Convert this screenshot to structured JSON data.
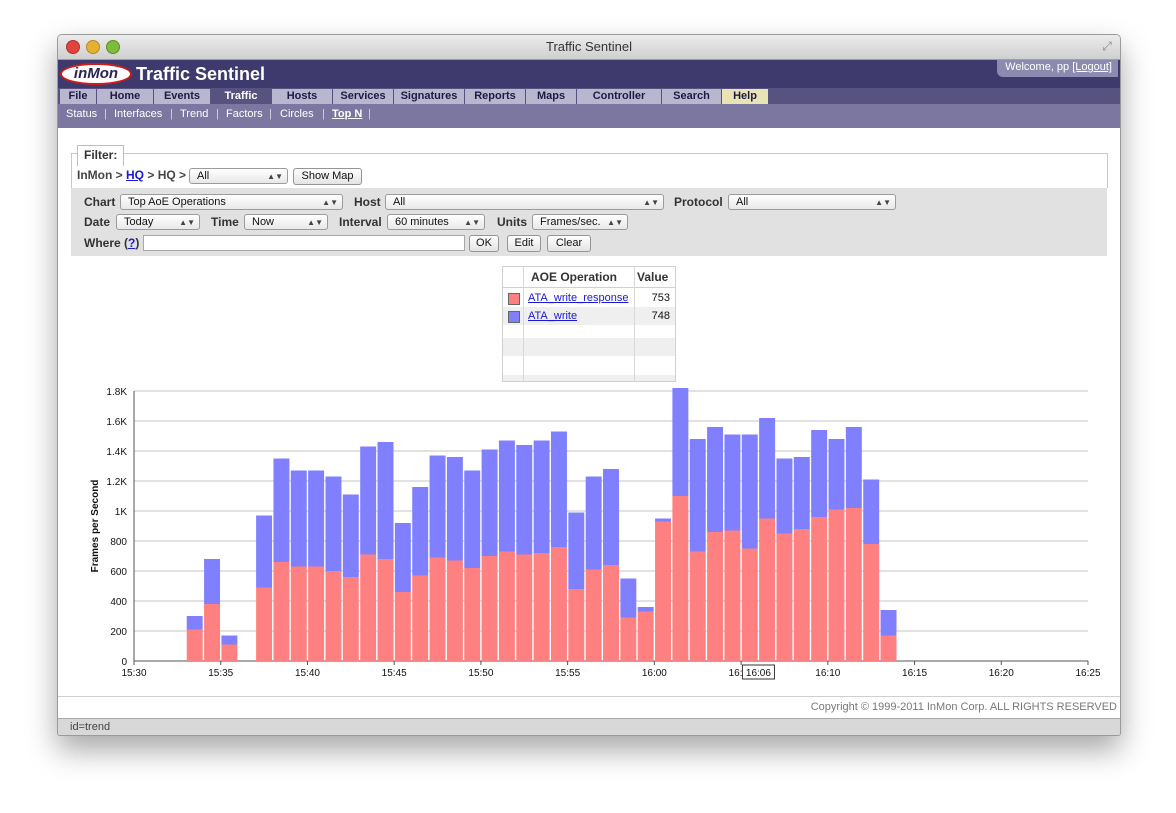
{
  "window": {
    "title": "Traffic Sentinel"
  },
  "header": {
    "logo_text": "inMon",
    "app_title": "Traffic Sentinel",
    "welcome_text": "Welcome, pp",
    "logout_label": "[Logout]"
  },
  "menu": [
    "File",
    "Home",
    "Events",
    "Traffic",
    "Hosts",
    "Services",
    "Signatures",
    "Reports",
    "Maps",
    "Controller",
    "Search",
    "Help"
  ],
  "submenu": [
    "Status",
    "Interfaces",
    "Trend",
    "Factors",
    "Circles",
    "Top N"
  ],
  "filter": {
    "legend": "Filter:",
    "crumb_prefix": "InMon >",
    "crumb_link": "HQ",
    "crumb_suffix": "> HQ >",
    "select_value": "All",
    "show_map_label": "Show Map"
  },
  "options": {
    "chart_label": "Chart",
    "chart_value": "Top AoE Operations",
    "host_label": "Host",
    "host_value": "All",
    "protocol_label": "Protocol",
    "protocol_value": "All",
    "date_label": "Date",
    "date_value": "Today",
    "time_label": "Time",
    "time_value": "Now",
    "interval_label": "Interval",
    "interval_value": "60 minutes",
    "units_label": "Units",
    "units_value": "Frames/sec.",
    "where_label": "Where (",
    "where_help": "?",
    "where_close": ")",
    "where_value": "",
    "ok_label": "OK",
    "edit_label": "Edit",
    "clear_label": "Clear"
  },
  "legend_table": {
    "col1": "AOE Operation",
    "col2": "Value",
    "rows": [
      {
        "name": "ATA_write_response",
        "value": "753",
        "color": "#ff8080"
      },
      {
        "name": "ATA_write",
        "value": "748",
        "color": "#8080ff"
      }
    ]
  },
  "chart_data": {
    "type": "bar",
    "stacked": true,
    "ylabel": "Frames per Second",
    "ylim": [
      0,
      1800
    ],
    "y_ticks": [
      "0",
      "200",
      "400",
      "600",
      "800",
      "1K",
      "1.2K",
      "1.4K",
      "1.6K",
      "1.8K"
    ],
    "x_start_minute": 930,
    "x_end_minute": 985,
    "x_ticks": [
      "15:30",
      "15:35",
      "15:40",
      "15:45",
      "15:50",
      "15:55",
      "16:00",
      "16:05",
      "16:10",
      "16:15",
      "16:20",
      "16:25"
    ],
    "cursor_label": "16:06",
    "grid": true,
    "bar_start_minute": 933.5,
    "series": [
      {
        "name": "ATA_write_response",
        "color": "#ff8080",
        "values": [
          210,
          380,
          110,
          0,
          490,
          660,
          630,
          630,
          600,
          560,
          710,
          680,
          460,
          570,
          690,
          670,
          620,
          700,
          730,
          710,
          720,
          760,
          480,
          610,
          640,
          290,
          330,
          930,
          1100,
          730,
          860,
          870,
          750,
          950,
          850,
          880,
          960,
          1010,
          1020,
          780,
          170
        ]
      },
      {
        "name": "ATA_write",
        "color": "#8080ff",
        "values": [
          90,
          300,
          60,
          0,
          480,
          690,
          640,
          640,
          630,
          550,
          720,
          780,
          460,
          590,
          680,
          690,
          650,
          710,
          740,
          730,
          750,
          770,
          510,
          620,
          640,
          260,
          30,
          20,
          720,
          750,
          700,
          640,
          760,
          670,
          500,
          480,
          580,
          470,
          540,
          430,
          170
        ]
      }
    ]
  },
  "footer": {
    "copyright": "Copyright © 1999-2011 InMon Corp. ALL RIGHTS RESERVED"
  },
  "status": {
    "text": "id=trend"
  }
}
